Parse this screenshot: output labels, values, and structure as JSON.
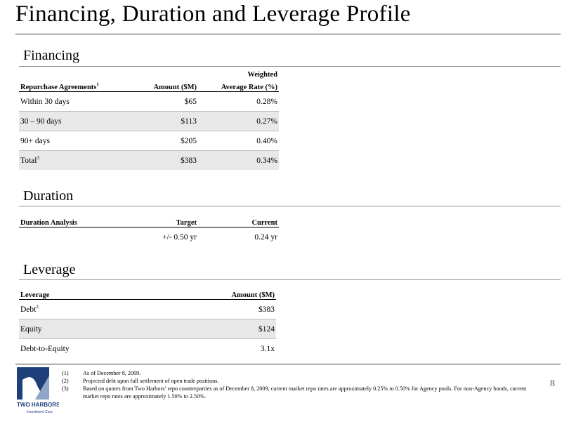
{
  "title": "Financing, Duration and Leverage Profile",
  "financing": {
    "heading": "Financing",
    "header": {
      "col1": "Repurchase Agreements",
      "col1_sup": "1",
      "col2": "Amount ($M)",
      "col3_line1": "Weighted",
      "col3_line2": "Average Rate (%)"
    },
    "rows": [
      {
        "label": "Within 30 days",
        "sup": "",
        "amount": "$65",
        "rate": "0.28%"
      },
      {
        "label": "30 – 90 days",
        "sup": "",
        "amount": "$113",
        "rate": "0.27%"
      },
      {
        "label": "90+ days",
        "sup": "",
        "amount": "$205",
        "rate": "0.40%"
      },
      {
        "label": "Total",
        "sup": "3",
        "amount": "$383",
        "rate": "0.34%"
      }
    ]
  },
  "duration": {
    "heading": "Duration",
    "header": {
      "col1": "Duration Analysis",
      "col2": "Target",
      "col3": "Current"
    },
    "row": {
      "label": "",
      "target": "+/- 0.50 yr",
      "current": "0.24 yr"
    }
  },
  "leverage": {
    "heading": "Leverage",
    "header": {
      "col1": "Leverage",
      "col2": "Amount ($M)"
    },
    "rows": [
      {
        "label": "Debt",
        "sup": "2",
        "amount": "$383"
      },
      {
        "label": "Equity",
        "sup": "",
        "amount": "$124"
      },
      {
        "label": "Debt-to-Equity",
        "sup": "",
        "amount": "3.1x"
      }
    ]
  },
  "footnotes": [
    {
      "num": "(1)",
      "text": "As of December 8, 2009."
    },
    {
      "num": "(2)",
      "text": "Projected debt upon full settlement of open trade positions."
    },
    {
      "num": "(3)",
      "text": "Based on quotes from Two Harbors’ repo counterparties as of December 8, 2009, current market repo rates are approximately 0.25% to 0.50% for Agency pools.  For non-Agency bonds, current market repo rates are approximately 1.50% to 2.50%."
    }
  ],
  "page_number": "8",
  "logo": {
    "name": "TWO HARBORS",
    "tagline": "Investment Corp",
    "color": "#1f3f7a"
  }
}
